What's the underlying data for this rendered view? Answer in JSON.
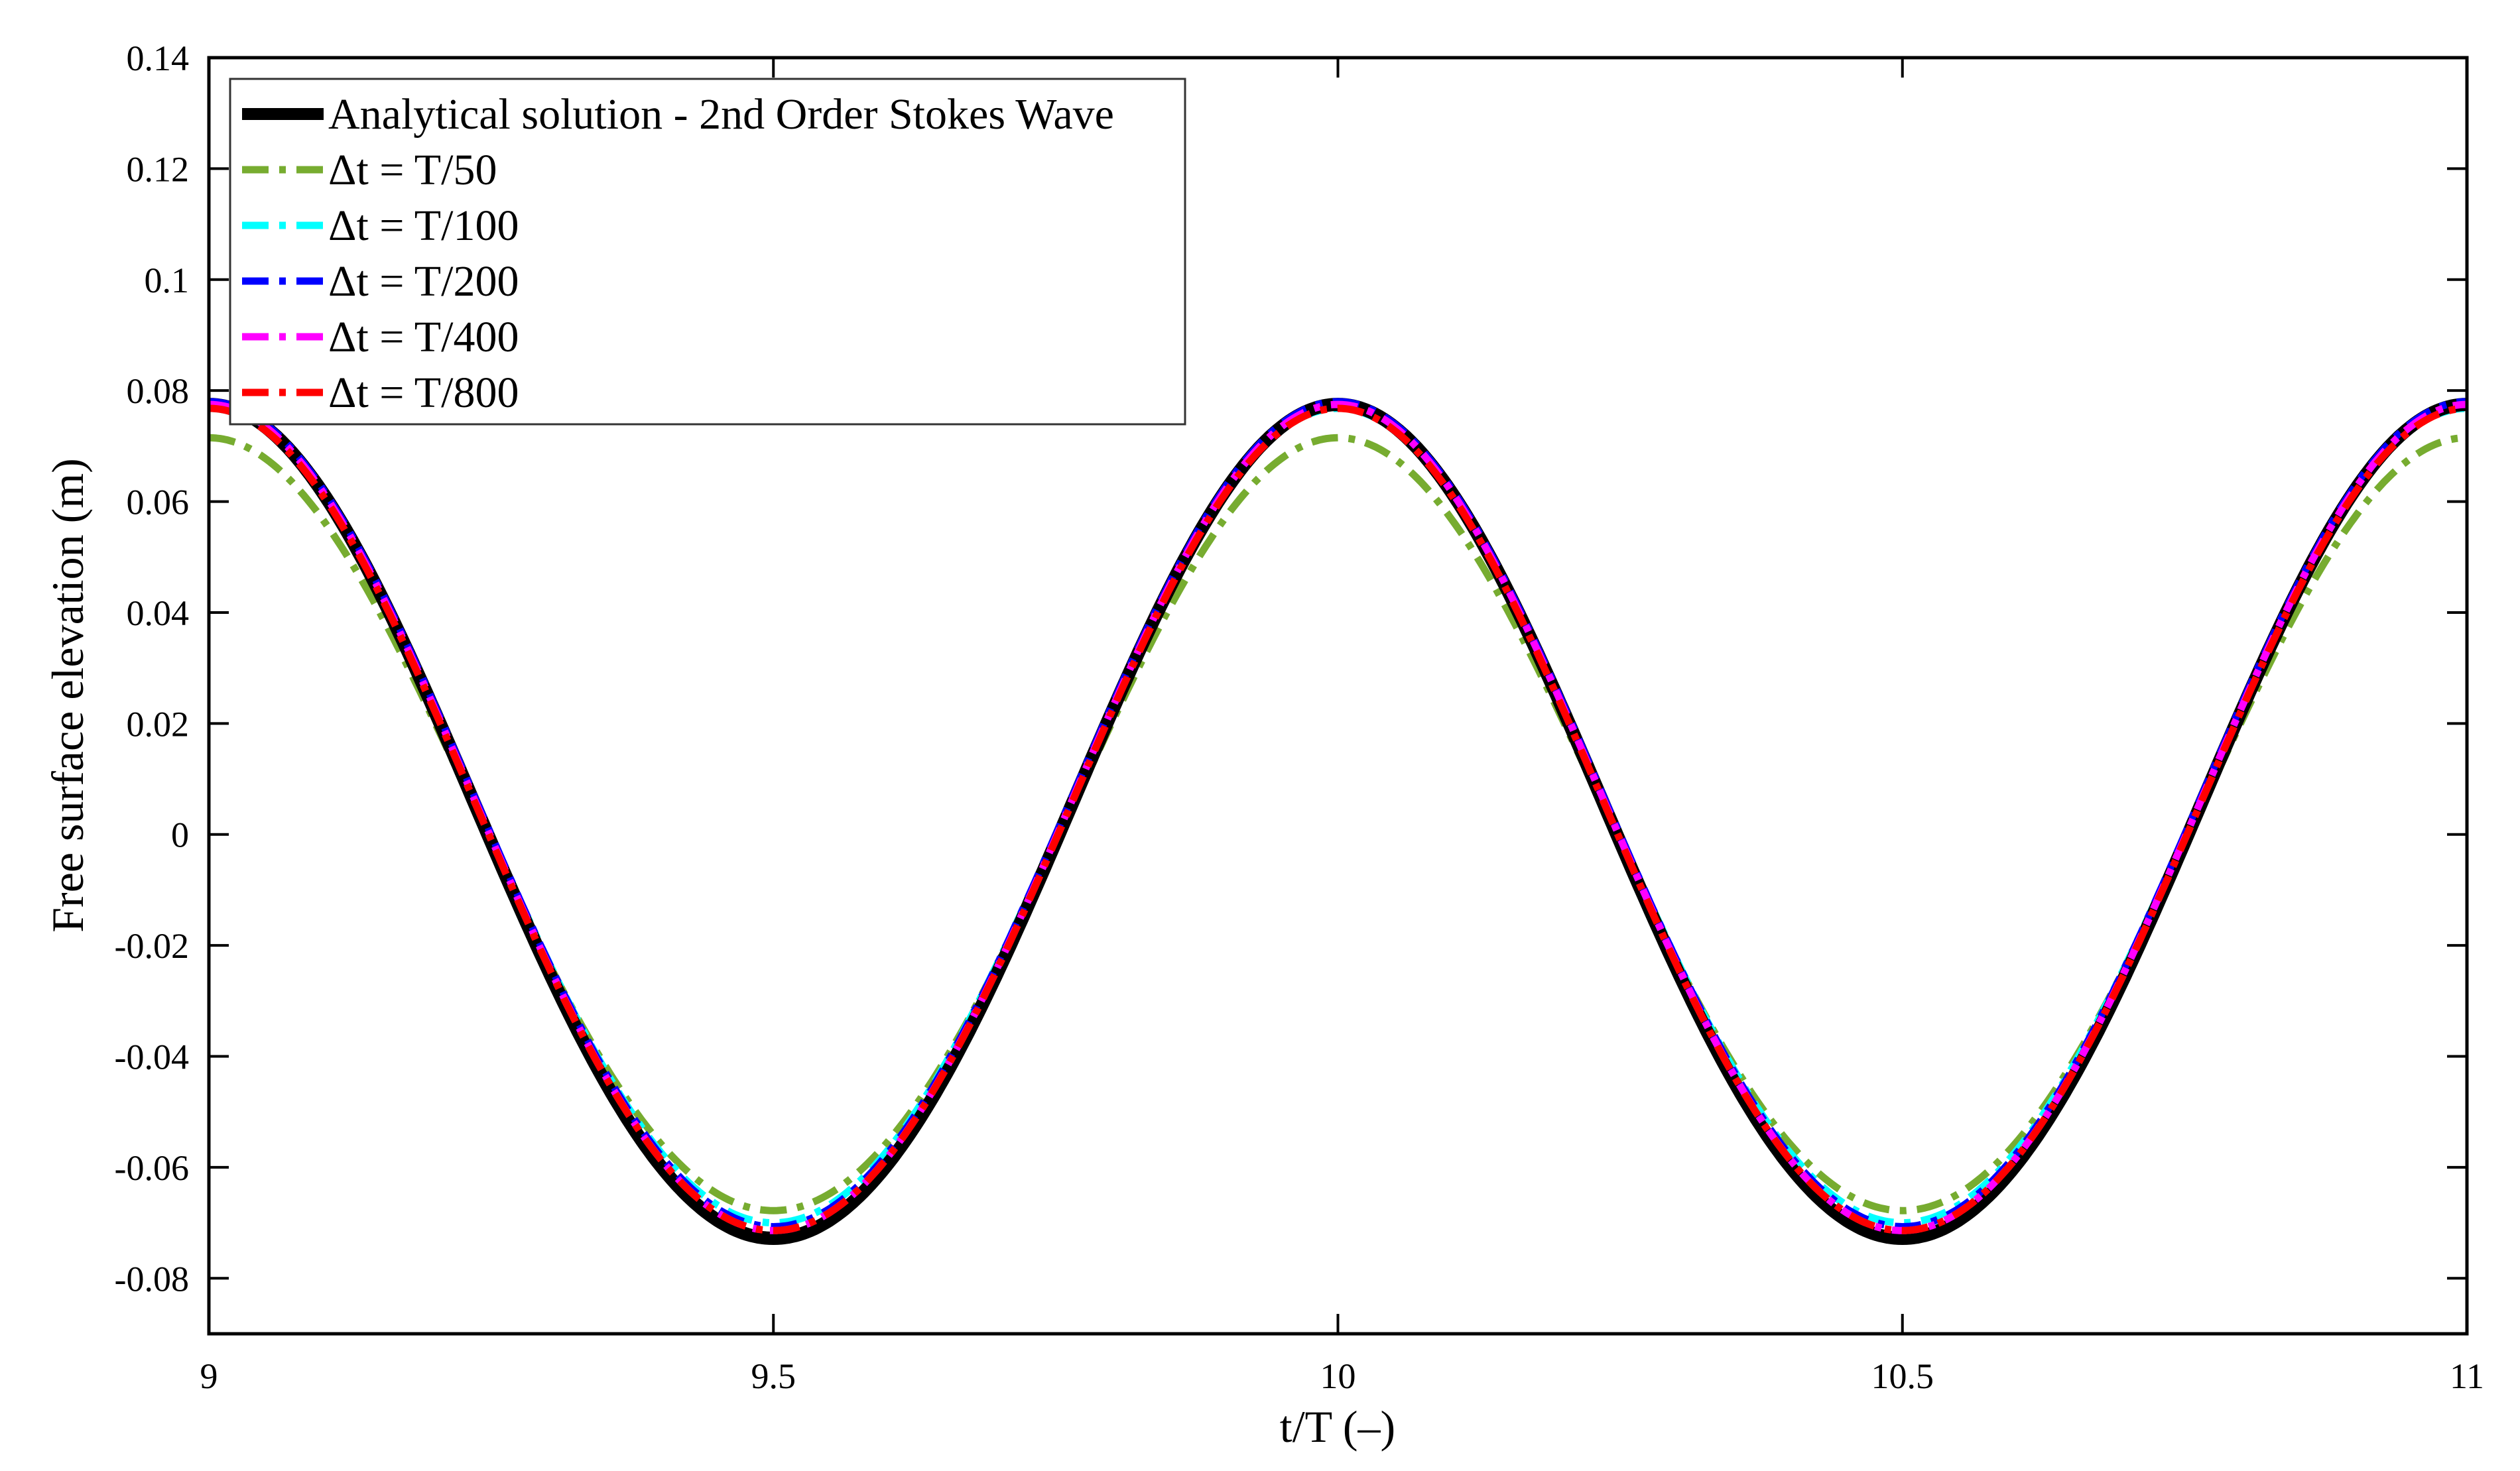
{
  "chart_data": {
    "type": "line",
    "title": "",
    "xlabel": "t/T (–)",
    "ylabel": "Free surface elevation (m)",
    "xlim": [
      9,
      11
    ],
    "ylim": [
      -0.09,
      0.14
    ],
    "xticks": [
      9,
      9.5,
      10,
      10.5,
      11
    ],
    "xtick_labels": [
      "9",
      "9.5",
      "10",
      "10.5",
      "11"
    ],
    "yticks": [
      0.14,
      0.12,
      0.1,
      0.08,
      0.06,
      0.04,
      0.02,
      0,
      -0.02,
      -0.04,
      -0.06,
      -0.08
    ],
    "ytick_labels": [
      "0.14",
      "0.12",
      "0.1",
      "0.08",
      "0.06",
      "0.04",
      "0.02",
      "0",
      "-0.02",
      "-0.04",
      "-0.06",
      "-0.08"
    ],
    "grid": false,
    "legend_position": "top-left",
    "series": [
      {
        "name": "Analytical solution - 2nd Order Stokes Wave",
        "color": "#000000",
        "style": "solid",
        "crest": 0.0775,
        "trough": -0.0728,
        "crest_time": 10.0,
        "trough_time": 9.5
      },
      {
        "name": "Δt = T/50",
        "color": "#77ac30",
        "style": "dashdot",
        "crest": 0.0715,
        "trough": -0.0678,
        "crest_time": 10.0,
        "trough_time": 9.5
      },
      {
        "name": "Δt = T/100",
        "color": "#00ffff",
        "style": "dashdot",
        "crest": 0.0768,
        "trough": -0.07,
        "crest_time": 10.0,
        "trough_time": 9.5
      },
      {
        "name": "Δt = T/200",
        "color": "#0000ff",
        "style": "dashdot",
        "crest": 0.078,
        "trough": -0.0707,
        "crest_time": 10.0,
        "trough_time": 9.5
      },
      {
        "name": "Δt = T/400",
        "color": "#ff00ff",
        "style": "dashdot",
        "crest": 0.0775,
        "trough": -0.0714,
        "crest_time": 10.0,
        "trough_time": 9.5
      },
      {
        "name": "Δt = T/800",
        "color": "#ff0000",
        "style": "dashdot",
        "crest": 0.0768,
        "trough": -0.0714,
        "crest_time": 10.0,
        "trough_time": 9.5
      }
    ]
  }
}
